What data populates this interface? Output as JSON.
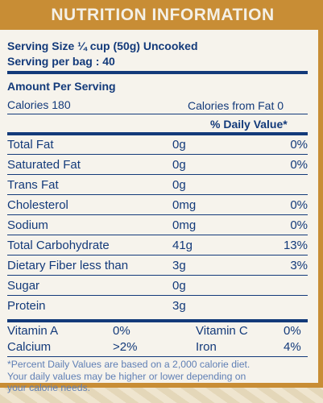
{
  "banner_title": "NUTRITION INFORMATION",
  "serving_size": "Serving Size ¼ cup (50g) Uncooked",
  "serving_per_bag": "Serving per bag : 40",
  "amount_per_serving": "Amount Per Serving",
  "calories": "Calories 180",
  "calories_from_fat": "Calories from Fat 0",
  "daily_value_header": "% Daily Value*",
  "nutrients": [
    {
      "name": "Total Fat",
      "amount": "0g",
      "dv": "0%"
    },
    {
      "name": "Saturated Fat",
      "amount": "0g",
      "dv": "0%"
    },
    {
      "name": "Trans Fat",
      "amount": "0g",
      "dv": ""
    },
    {
      "name": "Cholesterol",
      "amount": "0mg",
      "dv": "0%"
    },
    {
      "name": "Sodium",
      "amount": "0mg",
      "dv": "0%"
    },
    {
      "name": "Total Carbohydrate",
      "amount": "41g",
      "dv": "13%"
    },
    {
      "name": "Dietary Fiber less than",
      "amount": "3g",
      "dv": "3%"
    },
    {
      "name": "Sugar",
      "amount": "0g",
      "dv": ""
    },
    {
      "name": "Protein",
      "amount": "3g",
      "dv": ""
    }
  ],
  "vitamins": [
    {
      "left_name": "Vitamin A",
      "left_value": "0%",
      "right_name": "Vitamin C",
      "right_value": "0%"
    },
    {
      "left_name": "Calcium",
      "left_value": ">2%",
      "right_name": "Iron",
      "right_value": "4%"
    }
  ],
  "footnote_1": "*Percent Daily Values are based on a 2,000 calorie diet.",
  "footnote_2": "Your daily values may be higher or lower depending on",
  "footnote_3": "your calorie needs."
}
